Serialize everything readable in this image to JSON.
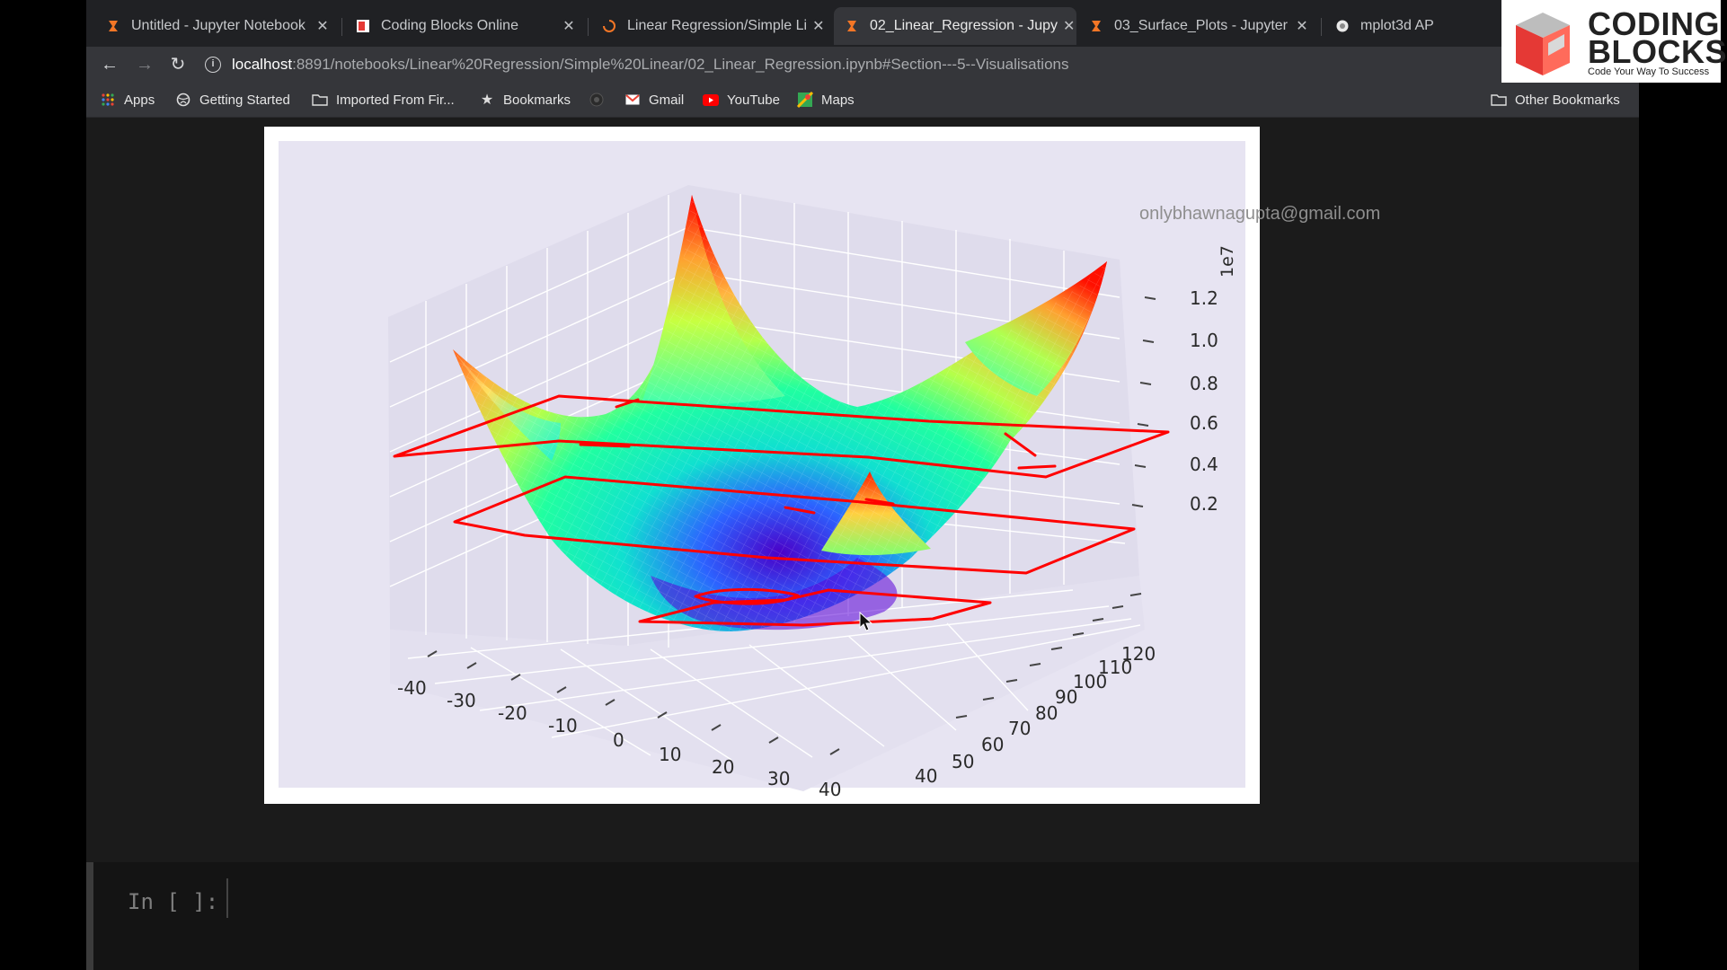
{
  "tabs": [
    {
      "title": "Untitled - Jupyter Notebook",
      "active": false
    },
    {
      "title": "Coding Blocks Online",
      "active": false
    },
    {
      "title": "Linear Regression/Simple Li",
      "active": false
    },
    {
      "title": "02_Linear_Regression - Jupy",
      "active": true
    },
    {
      "title": "03_Surface_Plots - Jupyter",
      "active": false
    },
    {
      "title": "mplot3d AP",
      "active": false
    }
  ],
  "toolbar": {
    "url_host": "localhost",
    "url_path": ":8891/notebooks/Linear%20Regression/Simple%20Linear/02_Linear_Regression.ipynb#Section---5--Visualisations"
  },
  "bookmarks": {
    "apps": "Apps",
    "getting_started": "Getting Started",
    "imported": "Imported From Fir...",
    "bookmarks": "Bookmarks",
    "gmail": "Gmail",
    "youtube": "YouTube",
    "maps": "Maps",
    "other": "Other Bookmarks"
  },
  "logo": {
    "line1": "CODING",
    "line2": "BLOCKS",
    "tagline": "Code Your Way To Success"
  },
  "watermark": "onlybhawnagupta@gmail.com",
  "notebook": {
    "cell_prompt": "In [ ]:"
  },
  "chart_data": {
    "type": "surface",
    "colormap": "rainbow",
    "x_ticks": [
      -40,
      -30,
      -20,
      -10,
      0,
      10,
      20,
      30,
      40
    ],
    "y_ticks": [
      40,
      50,
      60,
      70,
      80,
      90,
      100,
      110,
      120
    ],
    "z_ticks": [
      "0.2",
      "0.4",
      "0.6",
      "0.8",
      "1.0",
      "1.2"
    ],
    "z_offset_label": "1e7",
    "annotations": "red hand-drawn contour levels"
  }
}
